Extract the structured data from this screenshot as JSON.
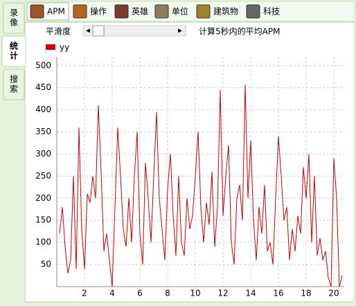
{
  "left_tabs": [
    "录像",
    "统计",
    "搜索"
  ],
  "toolbar": [
    "APM",
    "操作",
    "英雄",
    "单位",
    "建筑物",
    "科技"
  ],
  "controls": {
    "smooth_label": "平滑度",
    "description": "计算5秒内的平均APM"
  },
  "chart_data": {
    "type": "line",
    "x": [
      0.2,
      0.4,
      0.6,
      0.8,
      1.0,
      1.2,
      1.4,
      1.6,
      1.8,
      2.0,
      2.2,
      2.4,
      2.6,
      2.8,
      3.0,
      3.2,
      3.4,
      3.6,
      3.8,
      4.0,
      4.2,
      4.4,
      4.6,
      4.8,
      5.0,
      5.2,
      5.4,
      5.6,
      5.8,
      6.0,
      6.2,
      6.4,
      6.6,
      6.8,
      7.0,
      7.2,
      7.4,
      7.6,
      7.8,
      8.0,
      8.2,
      8.4,
      8.6,
      8.8,
      9.0,
      9.2,
      9.4,
      9.6,
      9.8,
      10.0,
      10.2,
      10.4,
      10.6,
      10.8,
      11.0,
      11.2,
      11.4,
      11.6,
      11.8,
      12.0,
      12.2,
      12.4,
      12.6,
      12.8,
      13.0,
      13.2,
      13.4,
      13.6,
      13.8,
      14.0,
      14.2,
      14.4,
      14.6,
      14.8,
      15.0,
      15.2,
      15.4,
      15.6,
      15.8,
      16.0,
      16.2,
      16.4,
      16.6,
      16.8,
      17.0,
      17.2,
      17.4,
      17.6,
      17.8,
      18.0,
      18.2,
      18.4,
      18.6,
      18.8,
      19.0,
      19.2,
      19.4,
      19.6,
      19.8,
      20.0,
      20.2,
      20.4,
      20.6
    ],
    "series": [
      {
        "name": "yy",
        "color": "#cc0000",
        "values": [
          120,
          180,
          90,
          30,
          60,
          250,
          40,
          360,
          130,
          40,
          210,
          190,
          250,
          200,
          410,
          260,
          80,
          120,
          60,
          0,
          180,
          360,
          250,
          130,
          90,
          200,
          100,
          250,
          350,
          120,
          50,
          280,
          200,
          100,
          250,
          395,
          200,
          130,
          60,
          220,
          300,
          160,
          70,
          250,
          100,
          70,
          200,
          130,
          160,
          250,
          350,
          180,
          100,
          190,
          140,
          260,
          90,
          180,
          445,
          160,
          250,
          320,
          100,
          50,
          200,
          230,
          150,
          457,
          200,
          330,
          150,
          60,
          180,
          120,
          230,
          80,
          100,
          50,
          200,
          340,
          250,
          150,
          180,
          60,
          130,
          80,
          160,
          120,
          270,
          200,
          300,
          100,
          250,
          70,
          110,
          60,
          80,
          20,
          0,
          290,
          200,
          0,
          25
        ]
      }
    ],
    "xlim": [
      0,
      20.75
    ],
    "ylim": [
      0,
      520
    ],
    "xticks": [
      2,
      4,
      6,
      8,
      10,
      12,
      14,
      16,
      18,
      20
    ],
    "yticks": [
      50,
      100,
      150,
      200,
      250,
      300,
      350,
      400,
      450,
      500
    ],
    "grid": true,
    "legend": "top-left"
  }
}
